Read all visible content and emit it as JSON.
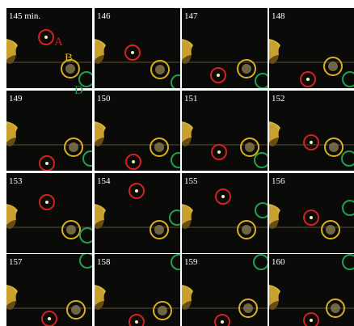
{
  "panels": [
    {
      "label": "145 min."
    },
    {
      "label": "146"
    },
    {
      "label": "147"
    },
    {
      "label": "148"
    },
    {
      "label": "149"
    },
    {
      "label": "150"
    },
    {
      "label": "151"
    },
    {
      "label": "152"
    },
    {
      "label": "153"
    },
    {
      "label": "154"
    },
    {
      "label": "155"
    },
    {
      "label": "156"
    },
    {
      "label": "157"
    },
    {
      "label": "158"
    },
    {
      "label": "159"
    },
    {
      "label": "160"
    }
  ],
  "annotations": [
    {
      "text": "A",
      "color": "#d42020"
    },
    {
      "text": "B",
      "color": "#d8b020"
    },
    {
      "text": "D",
      "color": "#20a050"
    }
  ]
}
